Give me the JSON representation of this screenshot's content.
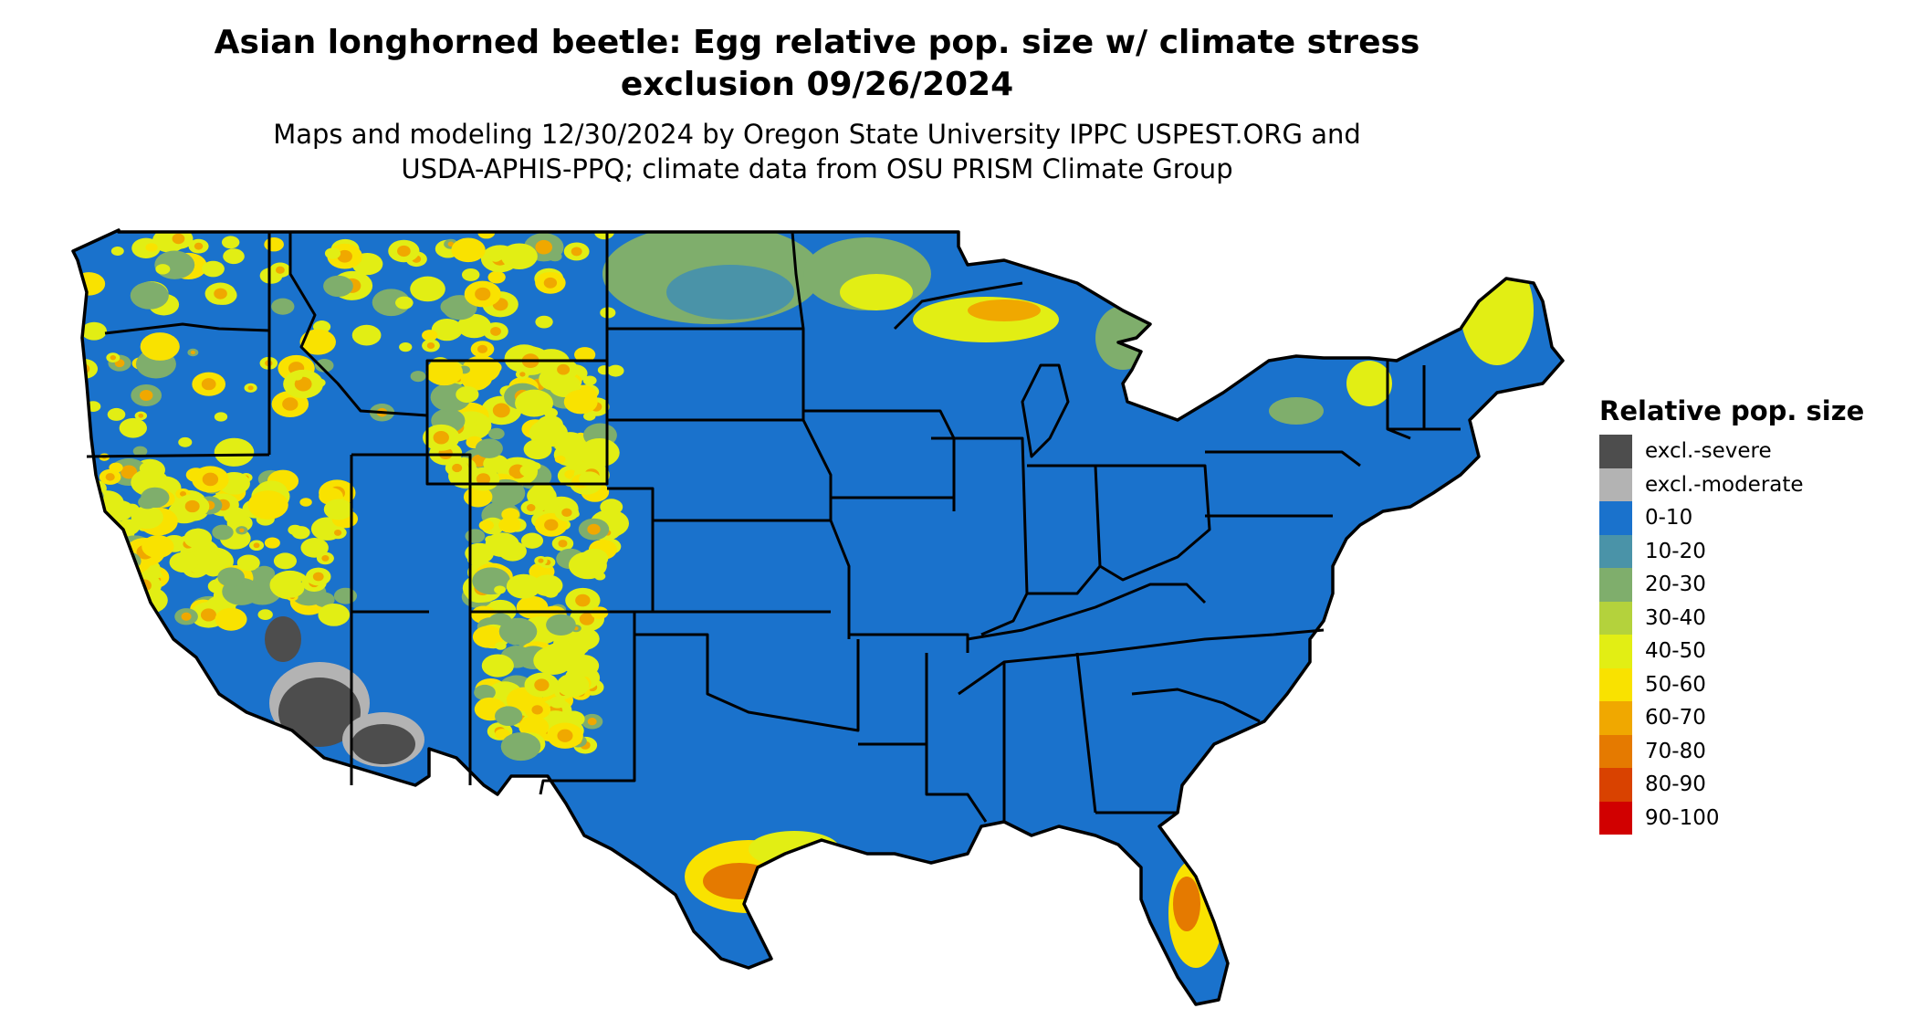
{
  "title": {
    "line1": "Asian longhorned beetle: Egg relative pop. size w/ climate stress",
    "line2": "exclusion 09/26/2024"
  },
  "subtitle": {
    "line1": "Maps and modeling 12/30/2024 by Oregon State University IPPC USPEST.ORG and",
    "line2": "USDA-APHIS-PPQ; climate data from OSU PRISM Climate Group"
  },
  "legend": {
    "title": "Relative pop. size",
    "items": [
      {
        "label": "excl.-severe",
        "color": "#4d4d4d"
      },
      {
        "label": "excl.-moderate",
        "color": "#b3b3b3"
      },
      {
        "label": "0-10",
        "color": "#1a72cc"
      },
      {
        "label": "10-20",
        "color": "#4a93a8"
      },
      {
        "label": "20-30",
        "color": "#7fae6c"
      },
      {
        "label": "30-40",
        "color": "#b4d23c"
      },
      {
        "label": "40-50",
        "color": "#e2ee14"
      },
      {
        "label": "50-60",
        "color": "#f9e200"
      },
      {
        "label": "60-70",
        "color": "#f0a800"
      },
      {
        "label": "70-80",
        "color": "#e57a00"
      },
      {
        "label": "80-90",
        "color": "#d94200"
      },
      {
        "label": "90-100",
        "color": "#d10000"
      }
    ]
  },
  "map": {
    "region": "contiguous-united-states",
    "base_color": "#1a72cc",
    "border_color": "#000000"
  }
}
